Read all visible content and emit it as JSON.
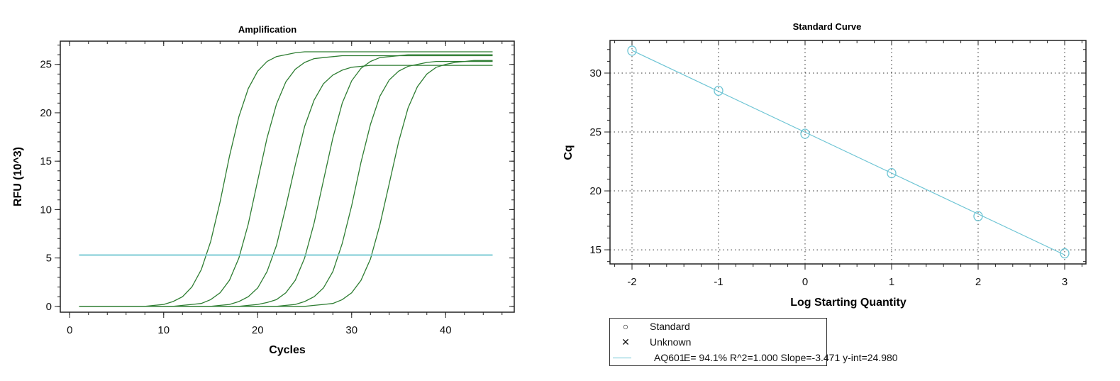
{
  "chart_data": [
    {
      "type": "line",
      "title": "Amplification",
      "xlabel": "Cycles",
      "ylabel": "RFU (10^3)",
      "xlim": [
        -1,
        47.3
      ],
      "ylim": [
        -0.6,
        27.4
      ],
      "xticks": [
        0,
        10,
        20,
        30,
        40
      ],
      "yticks": [
        0,
        5,
        10,
        15,
        20,
        25
      ],
      "grid": false,
      "curve_color": "#2e7d32",
      "threshold": {
        "value": 5.3,
        "x_range": [
          1,
          45
        ],
        "color": "#7ccbd6"
      },
      "x": [
        1,
        2,
        3,
        4,
        5,
        6,
        7,
        8,
        9,
        10,
        11,
        12,
        13,
        14,
        15,
        16,
        17,
        18,
        19,
        20,
        21,
        22,
        23,
        24,
        25,
        26,
        27,
        28,
        29,
        30,
        31,
        32,
        33,
        34,
        35,
        36,
        37,
        38,
        39,
        40,
        41,
        42,
        43,
        44,
        45
      ],
      "series": [
        {
          "values": [
            0,
            0,
            0,
            0,
            0,
            0,
            0,
            0,
            0.1,
            0.2,
            0.5,
            1.0,
            2.0,
            3.8,
            6.7,
            10.8,
            15.5,
            19.6,
            22.5,
            24.3,
            25.3,
            25.8,
            26.0,
            26.2,
            26.3,
            26.3,
            26.3,
            26.3,
            26.3,
            26.3,
            26.3,
            26.3,
            26.3,
            26.3,
            26.3,
            26.3,
            26.3,
            26.3,
            26.3,
            26.3,
            26.3,
            26.3,
            26.3,
            26.3,
            26.3
          ]
        },
        {
          "values": [
            0,
            0,
            0,
            0,
            0,
            0,
            0,
            0,
            0,
            0,
            0,
            0.1,
            0.2,
            0.3,
            0.7,
            1.4,
            2.7,
            5.0,
            8.5,
            13.0,
            17.4,
            20.9,
            23.2,
            24.5,
            25.2,
            25.6,
            25.7,
            25.8,
            25.9,
            25.9,
            25.9,
            25.9,
            25.9,
            25.9,
            25.9,
            25.9,
            25.9,
            25.9,
            25.9,
            25.9,
            25.9,
            25.9,
            25.9,
            25.9,
            25.9
          ]
        },
        {
          "values": [
            0,
            0,
            0,
            0,
            0,
            0,
            0,
            0,
            0,
            0,
            0,
            0,
            0,
            0,
            0,
            0.1,
            0.2,
            0.5,
            1.0,
            1.9,
            3.6,
            6.3,
            10.3,
            14.6,
            18.6,
            21.3,
            23.0,
            23.9,
            24.4,
            24.7,
            24.8,
            24.9,
            24.9,
            24.9,
            24.9,
            24.9,
            24.9,
            24.9,
            24.9,
            24.9,
            24.9,
            24.9,
            24.9,
            24.9,
            24.9
          ]
        },
        {
          "values": [
            0,
            0,
            0,
            0,
            0,
            0,
            0,
            0,
            0,
            0,
            0,
            0,
            0,
            0,
            0,
            0,
            0,
            0,
            0.1,
            0.2,
            0.4,
            0.7,
            1.4,
            2.7,
            5.0,
            8.6,
            13.0,
            17.4,
            21.0,
            23.3,
            24.6,
            25.3,
            25.7,
            25.8,
            25.9,
            26.0,
            26.0,
            26.0,
            26.0,
            26.0,
            26.0,
            26.0,
            26.0,
            26.0,
            26.0
          ]
        },
        {
          "values": [
            0,
            0,
            0,
            0,
            0,
            0,
            0,
            0,
            0,
            0,
            0,
            0,
            0,
            0,
            0,
            0,
            0,
            0,
            0,
            0,
            0,
            0,
            0.1,
            0.2,
            0.5,
            1.0,
            1.9,
            3.6,
            6.5,
            10.4,
            14.9,
            18.8,
            21.7,
            23.4,
            24.3,
            24.8,
            25.0,
            25.2,
            25.3,
            25.3,
            25.3,
            25.3,
            25.3,
            25.3,
            25.3
          ]
        },
        {
          "values": [
            0,
            0,
            0,
            0,
            0,
            0,
            0,
            0,
            0,
            0,
            0,
            0,
            0,
            0,
            0,
            0,
            0,
            0,
            0,
            0,
            0,
            0,
            0,
            0,
            0,
            0.1,
            0.2,
            0.3,
            0.7,
            1.4,
            2.7,
            4.9,
            8.4,
            12.7,
            17.0,
            20.5,
            22.7,
            24.0,
            24.7,
            25.0,
            25.2,
            25.3,
            25.4,
            25.4,
            25.4
          ]
        }
      ]
    },
    {
      "type": "scatter",
      "title": "Standard Curve",
      "xlabel": "Log Starting Quantity",
      "ylabel": "Cq",
      "xlim": [
        -2.254,
        3.246
      ],
      "ylim": [
        13.8,
        32.77
      ],
      "xticks": [
        -2,
        -1,
        0,
        1,
        2,
        3
      ],
      "yticks": [
        15,
        20,
        25,
        30
      ],
      "grid": true,
      "color": "#6cc4d4",
      "standard_points": {
        "x": [
          -2,
          -1,
          0,
          1,
          2,
          3
        ],
        "y": [
          31.9,
          28.5,
          24.85,
          21.5,
          17.85,
          14.7
        ]
      },
      "fit": {
        "slope": -3.471,
        "intercept": 24.98
      },
      "legend": {
        "placement": "bottom-left",
        "standard_label": "Standard",
        "unknown_label": "Unknown",
        "fit_name": "AQ601",
        "fit_stats": "E= 94.1% R^2=1.000 Slope=-3.471 y-int=24.980"
      }
    }
  ]
}
